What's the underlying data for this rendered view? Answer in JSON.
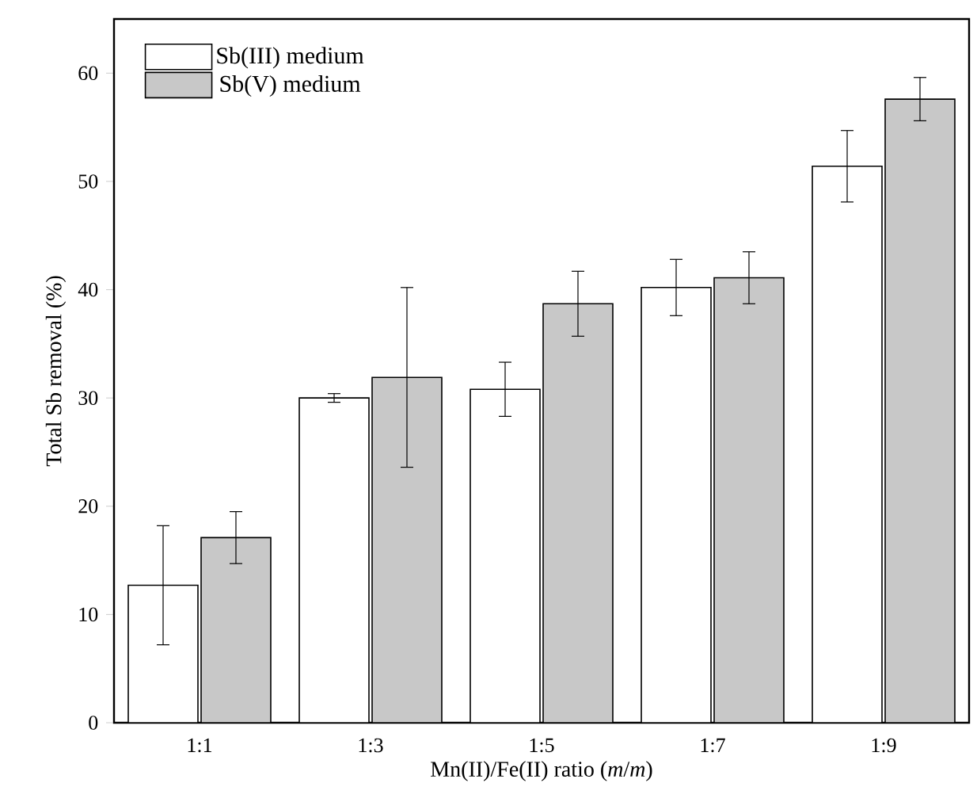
{
  "chart_data": {
    "type": "bar",
    "xlabel": "Mn(II)/Fe(II) ratio (*m*/*m*)",
    "ylabel": "Total Sb removal (%)",
    "categories": [
      "1:1",
      "1:3",
      "1:5",
      "1:7",
      "1:9"
    ],
    "series": [
      {
        "name": "Sb(III) medium",
        "color": "#ffffff",
        "values": [
          12.7,
          30.0,
          30.8,
          40.2,
          51.4
        ],
        "errors": [
          5.5,
          0.4,
          2.5,
          2.6,
          3.3
        ]
      },
      {
        "name": "Sb(V) medium",
        "color": "#c8c8c8",
        "values": [
          17.1,
          31.9,
          38.7,
          41.1,
          57.6
        ],
        "errors": [
          2.4,
          8.3,
          3.0,
          2.4,
          2.0
        ]
      }
    ],
    "ylim": [
      0,
      65
    ],
    "yticks": [
      0,
      10,
      20,
      30,
      40,
      50,
      60
    ],
    "legend": "top left"
  }
}
